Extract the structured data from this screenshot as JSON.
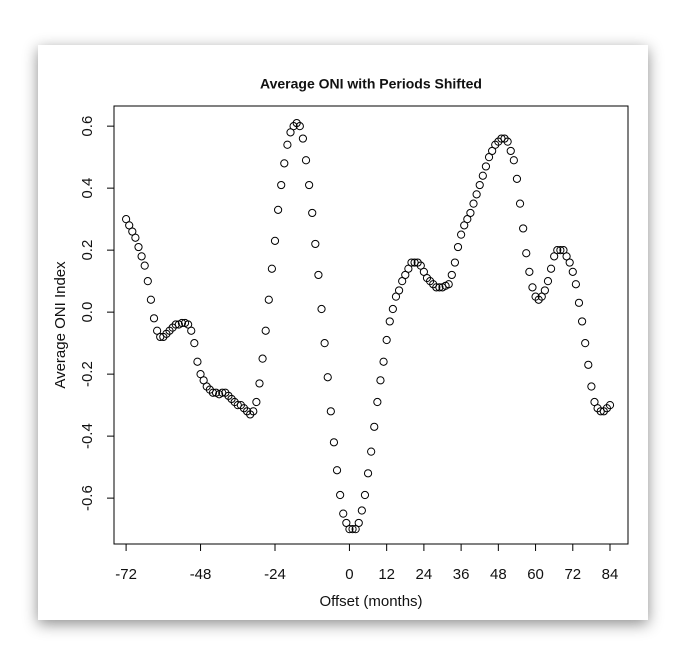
{
  "chart_data": {
    "type": "scatter",
    "title": "Average ONI with Periods Shifted",
    "x_label": "Offset (months)",
    "y_label": "Average ONI Index",
    "color": "#000000",
    "x": [
      -72,
      -71,
      -70,
      -69,
      -68,
      -67,
      -66,
      -65,
      -64,
      -63,
      -62,
      -61,
      -60,
      -59,
      -58,
      -57,
      -56,
      -55,
      -54,
      -53,
      -52,
      -51,
      -50,
      -49,
      -48,
      -47,
      -46,
      -45,
      -44,
      -43,
      -42,
      -41,
      -40,
      -39,
      -38,
      -37,
      -36,
      -35,
      -34,
      -33,
      -32,
      -31,
      -30,
      -29,
      -28,
      -27,
      -26,
      -25,
      -24,
      -23,
      -22,
      -21,
      -20,
      -19,
      -18,
      -17,
      -16,
      -15,
      -14,
      -13,
      -12,
      -11,
      -10,
      -9,
      -8,
      -7,
      -6,
      -5,
      -4,
      -3,
      -2,
      -1,
      0,
      1,
      2,
      3,
      4,
      5,
      6,
      7,
      8,
      9,
      10,
      11,
      12,
      13,
      14,
      15,
      16,
      17,
      18,
      19,
      20,
      21,
      22,
      23,
      24,
      25,
      26,
      27,
      28,
      29,
      30,
      31,
      32,
      33,
      34,
      35,
      36,
      37,
      38,
      39,
      40,
      41,
      42,
      43,
      44,
      45,
      46,
      47,
      48,
      49,
      50,
      51,
      52,
      53,
      54,
      55,
      56,
      57,
      58,
      59,
      60,
      61,
      62,
      63,
      64,
      65,
      66,
      67,
      68,
      69,
      70,
      71,
      72,
      73,
      74,
      75,
      76,
      77,
      78,
      79,
      80,
      81,
      82,
      83,
      84
    ],
    "values": [
      0.3,
      0.28,
      0.26,
      0.24,
      0.21,
      0.18,
      0.15,
      0.1,
      0.04,
      -0.02,
      -0.06,
      -0.08,
      -0.08,
      -0.07,
      -0.06,
      -0.05,
      -0.04,
      -0.04,
      -0.035,
      -0.035,
      -0.04,
      -0.06,
      -0.1,
      -0.16,
      -0.2,
      -0.22,
      -0.24,
      -0.25,
      -0.26,
      -0.26,
      -0.265,
      -0.26,
      -0.26,
      -0.27,
      -0.28,
      -0.29,
      -0.3,
      -0.3,
      -0.31,
      -0.32,
      -0.33,
      -0.32,
      -0.29,
      -0.23,
      -0.15,
      -0.06,
      0.04,
      0.14,
      0.23,
      0.33,
      0.41,
      0.48,
      0.54,
      0.58,
      0.6,
      0.61,
      0.6,
      0.56,
      0.49,
      0.41,
      0.32,
      0.22,
      0.12,
      0.01,
      -0.1,
      -0.21,
      -0.32,
      -0.42,
      -0.51,
      -0.59,
      -0.65,
      -0.68,
      -0.7,
      -0.7,
      -0.7,
      -0.68,
      -0.64,
      -0.59,
      -0.52,
      -0.45,
      -0.37,
      -0.29,
      -0.22,
      -0.16,
      -0.09,
      -0.03,
      0.01,
      0.05,
      0.07,
      0.1,
      0.12,
      0.14,
      0.16,
      0.16,
      0.16,
      0.15,
      0.13,
      0.11,
      0.1,
      0.09,
      0.08,
      0.08,
      0.08,
      0.085,
      0.09,
      0.12,
      0.16,
      0.21,
      0.25,
      0.28,
      0.3,
      0.32,
      0.35,
      0.38,
      0.41,
      0.44,
      0.47,
      0.5,
      0.52,
      0.54,
      0.55,
      0.56,
      0.56,
      0.55,
      0.52,
      0.49,
      0.43,
      0.35,
      0.27,
      0.19,
      0.13,
      0.08,
      0.05,
      0.04,
      0.05,
      0.07,
      0.1,
      0.14,
      0.18,
      0.2,
      0.2,
      0.2,
      0.18,
      0.16,
      0.13,
      0.09,
      0.03,
      -0.03,
      -0.1,
      -0.17,
      -0.24,
      -0.29,
      -0.31,
      -0.32,
      -0.32,
      -0.31,
      -0.3
    ],
    "xlim": [
      -75.9,
      89.8
    ],
    "ylim": [
      -0.748,
      0.665
    ],
    "xticks": [
      -72,
      -48,
      -24,
      0,
      12,
      24,
      36,
      48,
      60,
      72,
      84
    ],
    "yticks": [
      -0.6,
      -0.4,
      -0.2,
      {
        "value": 0,
        "label": "0.0"
      },
      0.2,
      0.4,
      0.6
    ]
  }
}
